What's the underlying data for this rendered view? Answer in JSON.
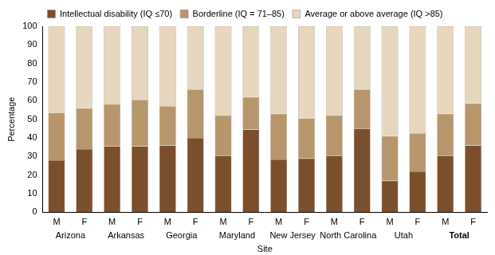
{
  "chart_data": {
    "type": "bar",
    "stacked": true,
    "grid": false,
    "legend": "top",
    "x_label": "Site",
    "y_label": "Percentage",
    "ylim": [
      0,
      100
    ],
    "yticks": [
      0,
      10,
      20,
      30,
      40,
      50,
      60,
      70,
      80,
      90,
      100
    ],
    "categories": [
      "M",
      "F",
      "M",
      "F",
      "M",
      "F",
      "M",
      "F",
      "M",
      "F",
      "M",
      "F",
      "M",
      "F",
      "M",
      "F"
    ],
    "groups": [
      "Arizona",
      "Arkansas",
      "Georgia",
      "Maryland",
      "New Jersey",
      "North Carolina",
      "Utah",
      "Total"
    ],
    "series": [
      {
        "name": "Intellectual disability (IQ ≤70)",
        "color": "#7b4f2c",
        "values": [
          28,
          34,
          35.5,
          35.5,
          36,
          40,
          30.5,
          44.5,
          28.5,
          29,
          30.5,
          45,
          17,
          22,
          30.5,
          36
        ]
      },
      {
        "name": "Borderline (IQ = 71–85)",
        "color": "#b8966c",
        "values": [
          25.5,
          22,
          22.5,
          25,
          21,
          26,
          21.5,
          17.5,
          24.5,
          21.5,
          21.5,
          21,
          24,
          20.5,
          22.5,
          22.5
        ]
      },
      {
        "name": "Average or above average (IQ >85)",
        "color": "#e6d6be",
        "values": [
          46.5,
          44,
          42,
          39.5,
          43,
          34,
          48,
          38,
          47,
          49.5,
          48,
          34,
          59,
          57.5,
          47,
          41.5
        ]
      }
    ]
  }
}
